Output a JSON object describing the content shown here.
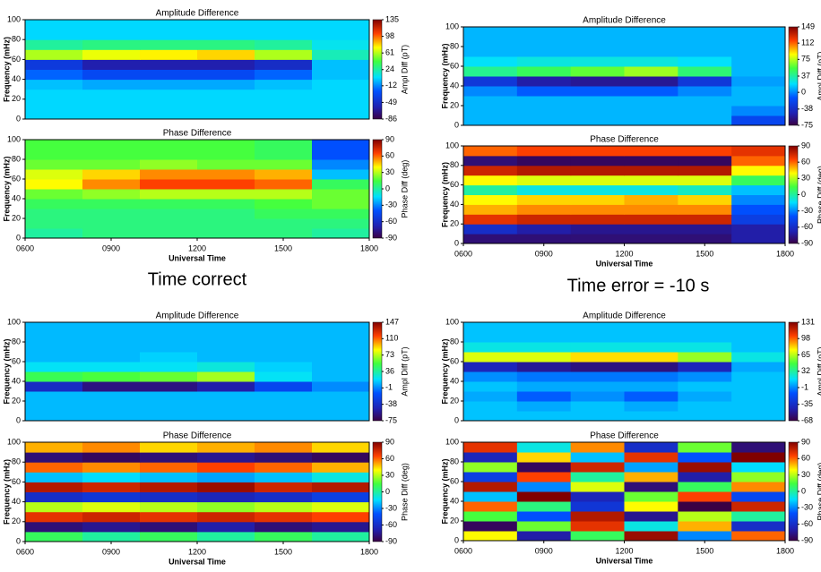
{
  "captions": [
    {
      "text": "Time correct",
      "color": "#2a2ae6"
    },
    {
      "text": "Time error = -10 s",
      "color": "#c00000"
    }
  ],
  "chart_data": [
    {
      "type": "heatmap",
      "title": "Amplitude Difference",
      "ylabel": "Frequency (mHz)",
      "colorbar_label": "Ampl Diff (pT)",
      "colormap": "jet",
      "xlim": [
        6,
        18
      ],
      "ylim": [
        0,
        100
      ],
      "yticks": [
        0,
        20,
        40,
        60,
        80,
        100
      ],
      "clim": [
        -86,
        135
      ],
      "cticks": [
        135,
        98,
        61,
        24,
        -12,
        -49,
        -86
      ],
      "xbins": [
        6,
        8,
        10,
        12,
        14,
        16,
        18
      ],
      "ybins": [
        0,
        10,
        20,
        30,
        40,
        50,
        60,
        70,
        80,
        90,
        100
      ],
      "z": [
        [
          5,
          5,
          5,
          5,
          5,
          5
        ],
        [
          5,
          5,
          5,
          5,
          5,
          5
        ],
        [
          5,
          5,
          5,
          5,
          5,
          5
        ],
        [
          0,
          -5,
          -5,
          -5,
          0,
          5
        ],
        [
          -20,
          -30,
          -30,
          -30,
          -20,
          0
        ],
        [
          -40,
          -60,
          -60,
          -60,
          -50,
          0
        ],
        [
          60,
          70,
          75,
          80,
          60,
          20
        ],
        [
          25,
          30,
          30,
          30,
          25,
          10
        ],
        [
          5,
          5,
          5,
          5,
          5,
          5
        ],
        [
          5,
          5,
          5,
          5,
          5,
          5
        ]
      ]
    },
    {
      "type": "heatmap",
      "title": "Phase Difference",
      "ylabel": "Frequency (mHz)",
      "xlabel": "Universal Time",
      "colorbar_label": "Phase Diff (deg)",
      "colormap": "jet",
      "xlim": [
        6,
        18
      ],
      "ylim": [
        0,
        100
      ],
      "yticks": [
        0,
        20,
        40,
        60,
        80,
        100
      ],
      "xticks": [
        {
          "value": 6,
          "label": "0600"
        },
        {
          "value": 9,
          "label": "0900"
        },
        {
          "value": 12,
          "label": "1200"
        },
        {
          "value": 15,
          "label": "1500"
        },
        {
          "value": 18,
          "label": "1800"
        }
      ],
      "clim": [
        -90,
        90
      ],
      "cticks": [
        90,
        60,
        30,
        0,
        -30,
        -60,
        -90
      ],
      "xbins": [
        6,
        8,
        10,
        12,
        14,
        16,
        18
      ],
      "ybins": [
        0,
        10,
        20,
        30,
        40,
        50,
        60,
        70,
        80,
        90,
        100
      ],
      "z": [
        [
          0,
          5,
          5,
          5,
          5,
          0
        ],
        [
          5,
          5,
          5,
          5,
          5,
          5
        ],
        [
          5,
          5,
          5,
          5,
          10,
          10
        ],
        [
          10,
          10,
          10,
          10,
          15,
          20
        ],
        [
          20,
          25,
          30,
          30,
          30,
          20
        ],
        [
          40,
          55,
          65,
          65,
          60,
          10
        ],
        [
          35,
          45,
          55,
          55,
          50,
          -20
        ],
        [
          20,
          20,
          25,
          20,
          20,
          -30
        ],
        [
          15,
          15,
          15,
          15,
          10,
          -40
        ],
        [
          15,
          15,
          15,
          15,
          10,
          -40
        ]
      ]
    },
    {
      "type": "heatmap",
      "title": "Amplitude Difference",
      "ylabel": "Frequency (mHz)",
      "colorbar_label": "Ampl Diff (pT)",
      "colormap": "jet",
      "xlim": [
        6,
        18
      ],
      "ylim": [
        0,
        100
      ],
      "yticks": [
        0,
        20,
        40,
        60,
        80,
        100
      ],
      "clim": [
        -75,
        149
      ],
      "cticks": [
        149,
        112,
        75,
        37,
        0,
        -38,
        -75
      ],
      "xbins": [
        6,
        8,
        10,
        12,
        14,
        16,
        18
      ],
      "ybins": [
        0,
        10,
        20,
        30,
        40,
        50,
        60,
        70,
        80,
        90,
        100
      ],
      "z": [
        [
          10,
          10,
          10,
          10,
          10,
          -20
        ],
        [
          10,
          10,
          10,
          10,
          10,
          0
        ],
        [
          10,
          10,
          10,
          10,
          10,
          10
        ],
        [
          0,
          -10,
          -10,
          -10,
          0,
          10
        ],
        [
          -30,
          -50,
          -55,
          -55,
          -30,
          5
        ],
        [
          40,
          50,
          60,
          70,
          45,
          10
        ],
        [
          20,
          25,
          25,
          25,
          20,
          10
        ],
        [
          10,
          10,
          10,
          10,
          10,
          10
        ],
        [
          10,
          10,
          10,
          10,
          10,
          10
        ],
        [
          10,
          10,
          10,
          10,
          10,
          10
        ]
      ]
    },
    {
      "type": "heatmap",
      "title": "Phase Difference",
      "ylabel": "Frequency (mHz)",
      "xlabel": "Universal Time",
      "colorbar_label": "Phase Diff (deg)",
      "colormap": "jet",
      "xlim": [
        6,
        18
      ],
      "ylim": [
        0,
        100
      ],
      "yticks": [
        0,
        20,
        40,
        60,
        80,
        100
      ],
      "xticks": [
        {
          "value": 6,
          "label": "0600"
        },
        {
          "value": 9,
          "label": "0900"
        },
        {
          "value": 12,
          "label": "1200"
        },
        {
          "value": 15,
          "label": "1500"
        },
        {
          "value": 18,
          "label": "1800"
        }
      ],
      "clim": [
        -90,
        90
      ],
      "cticks": [
        90,
        60,
        30,
        0,
        -30,
        -60,
        -90
      ],
      "xbins": [
        6,
        8,
        10,
        12,
        14,
        16,
        18
      ],
      "ybins": [
        0,
        10,
        20,
        30,
        40,
        50,
        60,
        70,
        80,
        90,
        100
      ],
      "z": [
        [
          -80,
          -80,
          -80,
          -80,
          -80,
          -70
        ],
        [
          -60,
          -70,
          -75,
          -75,
          -75,
          -70
        ],
        [
          70,
          75,
          75,
          75,
          75,
          -50
        ],
        [
          50,
          55,
          55,
          55,
          55,
          -40
        ],
        [
          40,
          45,
          45,
          50,
          45,
          -30
        ],
        [
          0,
          -10,
          -10,
          -10,
          -5,
          -20
        ],
        [
          40,
          35,
          35,
          35,
          35,
          10
        ],
        [
          75,
          80,
          80,
          80,
          80,
          40
        ],
        [
          -80,
          -85,
          -85,
          -85,
          -85,
          60
        ],
        [
          60,
          65,
          65,
          65,
          65,
          70
        ]
      ]
    },
    {
      "type": "heatmap",
      "title": "Amplitude Difference",
      "ylabel": "Frequency (mHz)",
      "colorbar_label": "Ampl Diff (pT)",
      "colormap": "jet",
      "xlim": [
        6,
        18
      ],
      "ylim": [
        0,
        100
      ],
      "yticks": [
        0,
        20,
        40,
        60,
        80,
        100
      ],
      "clim": [
        -75,
        147
      ],
      "cticks": [
        147,
        110,
        73,
        36,
        -1,
        -38,
        -75
      ],
      "xbins": [
        6,
        8,
        10,
        12,
        14,
        16,
        18
      ],
      "ybins": [
        0,
        10,
        20,
        30,
        40,
        50,
        60,
        70,
        80,
        90,
        100
      ],
      "z": [
        [
          10,
          10,
          10,
          10,
          10,
          10
        ],
        [
          10,
          10,
          10,
          10,
          10,
          10
        ],
        [
          10,
          10,
          10,
          10,
          10,
          10
        ],
        [
          -40,
          -60,
          -60,
          -50,
          -20,
          0
        ],
        [
          50,
          55,
          60,
          70,
          20,
          10
        ],
        [
          20,
          20,
          20,
          25,
          15,
          10
        ],
        [
          10,
          10,
          15,
          10,
          10,
          10
        ],
        [
          10,
          10,
          10,
          10,
          10,
          10
        ],
        [
          10,
          10,
          10,
          10,
          10,
          10
        ],
        [
          10,
          10,
          10,
          10,
          10,
          10
        ]
      ]
    },
    {
      "type": "heatmap",
      "title": "Phase Difference",
      "ylabel": "Frequency (mHz)",
      "xlabel": "Universal Time",
      "colorbar_label": "Phase Diff (deg)",
      "colormap": "jet",
      "xlim": [
        6,
        18
      ],
      "ylim": [
        0,
        100
      ],
      "yticks": [
        0,
        20,
        40,
        60,
        80,
        100
      ],
      "xticks": [
        {
          "value": 6,
          "label": "0600"
        },
        {
          "value": 9,
          "label": "0900"
        },
        {
          "value": 12,
          "label": "1200"
        },
        {
          "value": 15,
          "label": "1500"
        },
        {
          "value": 18,
          "label": "1800"
        }
      ],
      "clim": [
        -90,
        90
      ],
      "cticks": [
        90,
        60,
        30,
        0,
        -30,
        -60,
        -90
      ],
      "xbins": [
        6,
        8,
        10,
        12,
        14,
        16,
        18
      ],
      "ybins": [
        0,
        10,
        20,
        30,
        40,
        50,
        60,
        70,
        80,
        90,
        100
      ],
      "z": [
        [
          10,
          0,
          10,
          0,
          10,
          0
        ],
        [
          -80,
          -75,
          -80,
          -70,
          -80,
          -75
        ],
        [
          70,
          75,
          70,
          75,
          70,
          65
        ],
        [
          30,
          35,
          30,
          25,
          30,
          35
        ],
        [
          -60,
          -55,
          -60,
          -65,
          -60,
          -50
        ],
        [
          80,
          75,
          80,
          85,
          75,
          80
        ],
        [
          -20,
          -15,
          -20,
          -25,
          -20,
          -10
        ],
        [
          60,
          55,
          60,
          65,
          60,
          50
        ],
        [
          -80,
          -85,
          -80,
          -75,
          -80,
          -85
        ],
        [
          50,
          55,
          45,
          50,
          55,
          45
        ]
      ]
    },
    {
      "type": "heatmap",
      "title": "Amplitude Difference",
      "ylabel": "Frequency (mHz)",
      "colorbar_label": "Ampl Diff (pT)",
      "colormap": "jet",
      "xlim": [
        6,
        18
      ],
      "ylim": [
        0,
        100
      ],
      "yticks": [
        0,
        20,
        40,
        60,
        80,
        100
      ],
      "clim": [
        -68,
        131
      ],
      "cticks": [
        131,
        98,
        65,
        32,
        -1,
        -35,
        -68
      ],
      "xbins": [
        6,
        8,
        10,
        12,
        14,
        16,
        18
      ],
      "ybins": [
        0,
        10,
        20,
        30,
        40,
        50,
        60,
        70,
        80,
        90,
        100
      ],
      "z": [
        [
          10,
          10,
          10,
          10,
          10,
          10
        ],
        [
          10,
          5,
          10,
          5,
          10,
          10
        ],
        [
          5,
          -10,
          0,
          -10,
          5,
          10
        ],
        [
          10,
          5,
          5,
          5,
          10,
          10
        ],
        [
          0,
          -5,
          -5,
          -5,
          0,
          10
        ],
        [
          -40,
          -50,
          -55,
          -55,
          -40,
          5
        ],
        [
          70,
          70,
          80,
          80,
          60,
          20
        ],
        [
          20,
          20,
          20,
          20,
          20,
          10
        ],
        [
          10,
          10,
          10,
          10,
          10,
          10
        ],
        [
          10,
          10,
          10,
          10,
          10,
          10
        ]
      ]
    },
    {
      "type": "heatmap",
      "title": "Phase Difference",
      "ylabel": "Frequency (mHz)",
      "xlabel": "Universal Time",
      "colorbar_label": "Phase Diff (deg)",
      "colormap": "jet",
      "xlim": [
        6,
        18
      ],
      "ylim": [
        0,
        100
      ],
      "yticks": [
        0,
        20,
        40,
        60,
        80,
        100
      ],
      "xticks": [
        {
          "value": 6,
          "label": "0600"
        },
        {
          "value": 9,
          "label": "0900"
        },
        {
          "value": 12,
          "label": "1200"
        },
        {
          "value": 15,
          "label": "1500"
        },
        {
          "value": 18,
          "label": "1800"
        }
      ],
      "clim": [
        -90,
        90
      ],
      "cticks": [
        90,
        60,
        30,
        0,
        -30,
        -60,
        -90
      ],
      "xbins": [
        6,
        8,
        10,
        12,
        14,
        16,
        18
      ],
      "ybins": [
        0,
        10,
        20,
        30,
        40,
        50,
        60,
        70,
        80,
        90,
        100
      ],
      "z": [
        [
          40,
          -70,
          10,
          85,
          -30,
          60
        ],
        [
          -85,
          20,
          70,
          -10,
          50,
          -60
        ],
        [
          15,
          -40,
          80,
          -75,
          30,
          0
        ],
        [
          60,
          5,
          -55,
          40,
          -90,
          75
        ],
        [
          -20,
          90,
          -65,
          20,
          65,
          -45
        ],
        [
          80,
          -30,
          35,
          -80,
          10,
          55
        ],
        [
          -50,
          65,
          0,
          50,
          -70,
          25
        ],
        [
          25,
          -85,
          75,
          -25,
          85,
          -15
        ],
        [
          -65,
          45,
          -20,
          70,
          -40,
          90
        ],
        [
          70,
          -10,
          55,
          -60,
          20,
          -80
        ]
      ]
    }
  ]
}
